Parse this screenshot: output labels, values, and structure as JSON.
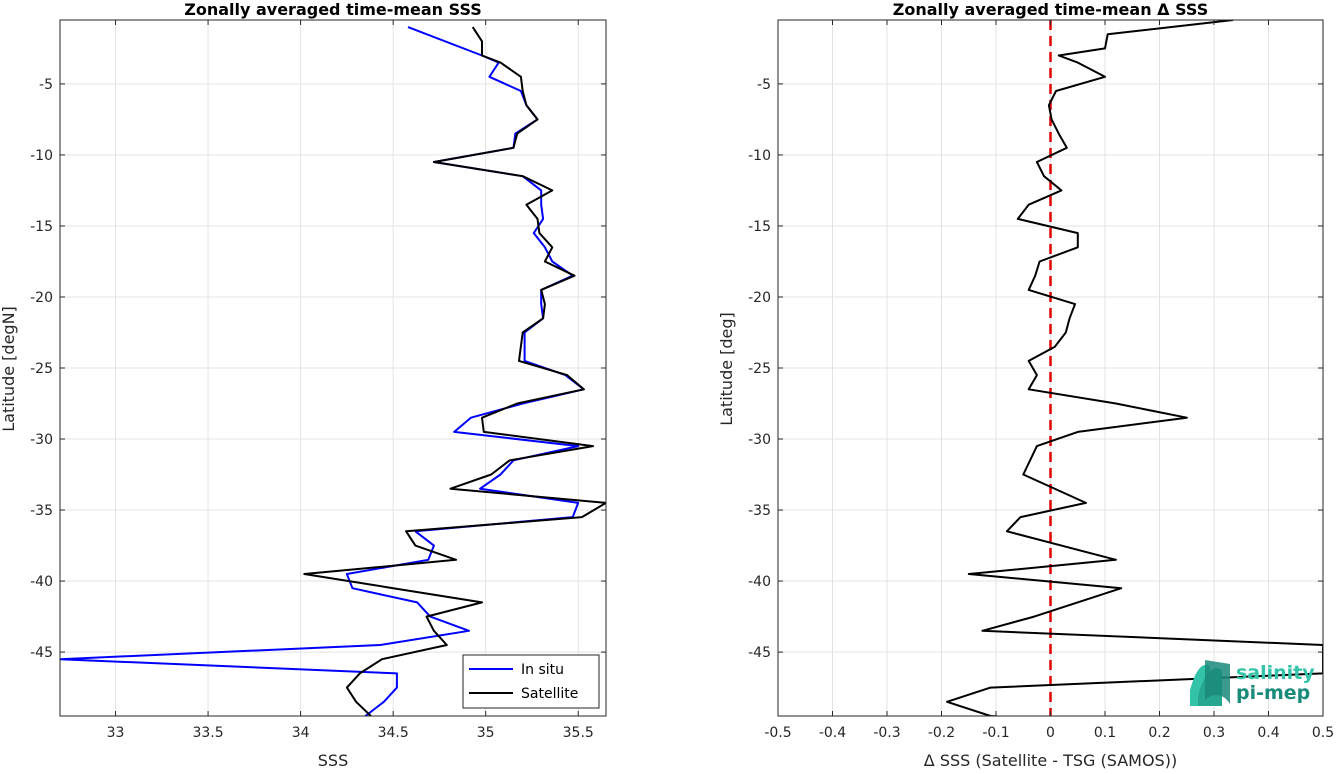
{
  "chart_data": [
    {
      "type": "line",
      "title": "Zonally averaged time-mean SSS",
      "xlabel": "SSS",
      "ylabel": "Latitude [degN]",
      "xlim": [
        32.7,
        35.65
      ],
      "ylim": [
        -49.5,
        -0.5
      ],
      "xticks": [
        33,
        33.5,
        34,
        34.5,
        35,
        35.5
      ],
      "xtick_labels": [
        "33",
        "33.5",
        "34",
        "34.5",
        "35",
        "35.5"
      ],
      "yticks": [
        -5,
        -10,
        -15,
        -20,
        -25,
        -30,
        -35,
        -40,
        -45
      ],
      "ytick_labels": [
        "-5",
        "-10",
        "-15",
        "-20",
        "-25",
        "-30",
        "-35",
        "-40",
        "-45"
      ],
      "grid": true,
      "legend": "bottom-right",
      "series": [
        {
          "name": "In situ",
          "color": "#0000ff",
          "points": [
            [
              34.58,
              -1.0
            ],
            [
              34.98,
              -3.0
            ],
            [
              35.07,
              -3.5
            ],
            [
              35.02,
              -4.5
            ],
            [
              35.19,
              -5.5
            ],
            [
              35.22,
              -6.5
            ],
            [
              35.28,
              -7.5
            ],
            [
              35.16,
              -8.5
            ],
            [
              35.15,
              -9.5
            ],
            [
              34.72,
              -10.5
            ],
            [
              35.2,
              -11.5
            ],
            [
              35.3,
              -12.5
            ],
            [
              35.3,
              -13.5
            ],
            [
              35.31,
              -14.5
            ],
            [
              35.26,
              -15.5
            ],
            [
              35.32,
              -16.5
            ],
            [
              35.36,
              -17.5
            ],
            [
              35.47,
              -18.5
            ],
            [
              35.3,
              -19.5
            ],
            [
              35.3,
              -20.5
            ],
            [
              35.31,
              -21.5
            ],
            [
              35.21,
              -22.5
            ],
            [
              35.21,
              -23.5
            ],
            [
              35.21,
              -24.5
            ],
            [
              35.43,
              -25.5
            ],
            [
              35.53,
              -26.5
            ],
            [
              35.2,
              -27.5
            ],
            [
              34.92,
              -28.5
            ],
            [
              34.83,
              -29.5
            ],
            [
              35.5,
              -30.5
            ],
            [
              35.15,
              -31.5
            ],
            [
              35.08,
              -32.5
            ],
            [
              34.97,
              -33.5
            ],
            [
              35.5,
              -34.5
            ],
            [
              35.47,
              -35.5
            ],
            [
              34.62,
              -36.5
            ],
            [
              34.72,
              -37.5
            ],
            [
              34.69,
              -38.5
            ],
            [
              34.25,
              -39.5
            ],
            [
              34.28,
              -40.5
            ],
            [
              34.63,
              -41.5
            ],
            [
              34.7,
              -42.5
            ],
            [
              34.91,
              -43.5
            ],
            [
              34.43,
              -44.5
            ],
            [
              32.7,
              -45.5
            ],
            [
              34.52,
              -46.5
            ],
            [
              34.52,
              -47.5
            ],
            [
              34.45,
              -48.5
            ],
            [
              34.35,
              -49.5
            ]
          ]
        },
        {
          "name": "Satellite",
          "color": "#000000",
          "points": [
            [
              34.93,
              -1.0
            ],
            [
              34.98,
              -2.0
            ],
            [
              34.98,
              -3.0
            ],
            [
              35.08,
              -3.5
            ],
            [
              35.19,
              -4.5
            ],
            [
              35.2,
              -5.5
            ],
            [
              35.22,
              -6.5
            ],
            [
              35.28,
              -7.5
            ],
            [
              35.17,
              -8.5
            ],
            [
              35.15,
              -9.5
            ],
            [
              34.72,
              -10.5
            ],
            [
              35.2,
              -11.5
            ],
            [
              35.36,
              -12.5
            ],
            [
              35.22,
              -13.5
            ],
            [
              35.28,
              -14.5
            ],
            [
              35.29,
              -15.5
            ],
            [
              35.36,
              -16.5
            ],
            [
              35.32,
              -17.5
            ],
            [
              35.48,
              -18.5
            ],
            [
              35.3,
              -19.5
            ],
            [
              35.32,
              -20.5
            ],
            [
              35.31,
              -21.5
            ],
            [
              35.2,
              -22.5
            ],
            [
              35.18,
              -24.5
            ],
            [
              35.44,
              -25.5
            ],
            [
              35.53,
              -26.5
            ],
            [
              35.17,
              -27.5
            ],
            [
              34.98,
              -28.5
            ],
            [
              34.99,
              -29.5
            ],
            [
              35.58,
              -30.5
            ],
            [
              35.13,
              -31.5
            ],
            [
              35.03,
              -32.5
            ],
            [
              34.81,
              -33.5
            ],
            [
              35.65,
              -34.5
            ],
            [
              35.52,
              -35.5
            ],
            [
              34.57,
              -36.5
            ],
            [
              34.62,
              -37.5
            ],
            [
              34.84,
              -38.5
            ],
            [
              34.02,
              -39.5
            ],
            [
              34.5,
              -40.5
            ],
            [
              34.98,
              -41.5
            ],
            [
              34.68,
              -42.5
            ],
            [
              34.72,
              -43.5
            ],
            [
              34.79,
              -44.5
            ],
            [
              34.44,
              -45.5
            ],
            [
              34.32,
              -46.5
            ],
            [
              34.25,
              -47.5
            ],
            [
              34.3,
              -48.5
            ],
            [
              34.38,
              -49.5
            ]
          ]
        }
      ]
    },
    {
      "type": "line",
      "title": "Zonally averaged time-mean Δ SSS",
      "xlabel": "Δ SSS (Satellite - TSG (SAMOS))",
      "ylabel": "Latitude [deg]",
      "xlim": [
        -0.5,
        0.5
      ],
      "ylim": [
        -49.5,
        -0.5
      ],
      "xticks": [
        -0.5,
        -0.4,
        -0.3,
        -0.2,
        -0.1,
        0,
        0.1,
        0.2,
        0.3,
        0.4,
        0.5
      ],
      "xtick_labels": [
        "-0.5",
        "-0.4",
        "-0.3",
        "-0.2",
        "-0.1",
        "0",
        "0.1",
        "0.2",
        "0.3",
        "0.4",
        "0.5"
      ],
      "yticks": [
        -5,
        -10,
        -15,
        -20,
        -25,
        -30,
        -35,
        -40,
        -45
      ],
      "ytick_labels": [
        "-5",
        "-10",
        "-15",
        "-20",
        "-25",
        "-30",
        "-35",
        "-40",
        "-45"
      ],
      "grid": true,
      "zero_line_color": "#e00000",
      "series": [
        {
          "color": "#000000",
          "points": [
            [
              0.335,
              -0.5
            ],
            [
              0.105,
              -1.5
            ],
            [
              0.1,
              -2.5
            ],
            [
              0.015,
              -3.0
            ],
            [
              0.05,
              -3.5
            ],
            [
              0.1,
              -4.5
            ],
            [
              0.01,
              -5.5
            ],
            [
              -0.003,
              -6.5
            ],
            [
              0.002,
              -7.5
            ],
            [
              0.015,
              -8.5
            ],
            [
              0.03,
              -9.5
            ],
            [
              -0.025,
              -10.5
            ],
            [
              -0.012,
              -11.5
            ],
            [
              0.02,
              -12.5
            ],
            [
              -0.04,
              -13.5
            ],
            [
              -0.06,
              -14.5
            ],
            [
              0.05,
              -15.5
            ],
            [
              0.05,
              -16.5
            ],
            [
              -0.02,
              -17.5
            ],
            [
              -0.028,
              -18.5
            ],
            [
              -0.04,
              -19.5
            ],
            [
              0.045,
              -20.5
            ],
            [
              0.035,
              -21.5
            ],
            [
              0.028,
              -22.5
            ],
            [
              0.008,
              -23.5
            ],
            [
              -0.04,
              -24.5
            ],
            [
              -0.025,
              -25.5
            ],
            [
              -0.04,
              -26.5
            ],
            [
              0.12,
              -27.5
            ],
            [
              0.25,
              -28.5
            ],
            [
              0.05,
              -29.5
            ],
            [
              -0.025,
              -30.5
            ],
            [
              -0.05,
              -32.5
            ],
            [
              0.065,
              -34.5
            ],
            [
              -0.055,
              -35.5
            ],
            [
              -0.08,
              -36.5
            ],
            [
              0.12,
              -38.5
            ],
            [
              -0.15,
              -39.5
            ],
            [
              0.13,
              -40.5
            ],
            [
              -0.03,
              -42.5
            ],
            [
              -0.125,
              -43.5
            ],
            [
              0.5,
              -44.5
            ],
            [
              0.5,
              -46.5
            ],
            [
              -0.11,
              -47.5
            ],
            [
              -0.19,
              -48.5
            ],
            [
              -0.11,
              -49.5
            ],
            [
              0.1,
              -50.0
            ]
          ]
        }
      ]
    }
  ],
  "logo": {
    "line1": "salinity",
    "line2": "pi-mep",
    "color_dark": "#1a8a7a",
    "color_light": "#33c3a8"
  }
}
